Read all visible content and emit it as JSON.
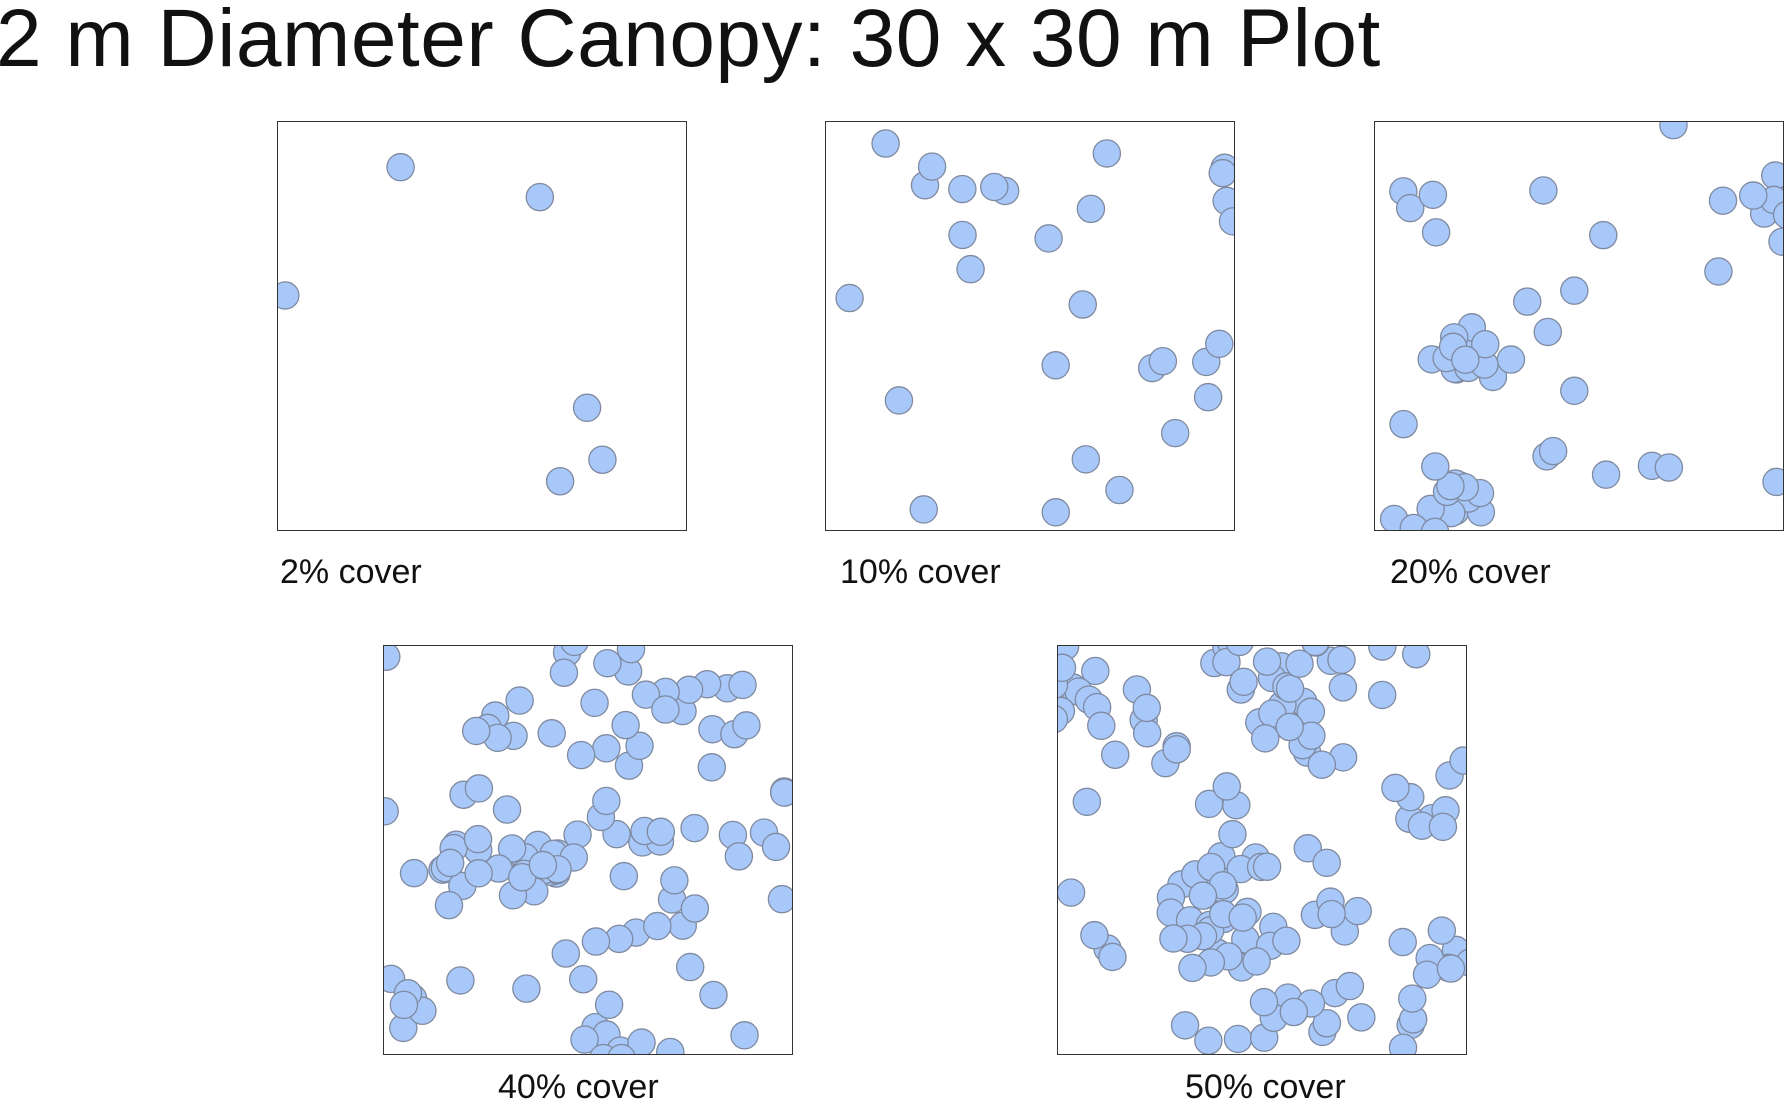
{
  "title": "2 m Diameter Canopy: 30 x 30 m Plot",
  "canopy_color": "#a8c8fa",
  "canopy_stroke": "#7f8aa0",
  "panels": [
    {
      "caption": "2% cover",
      "cover_percent": 2
    },
    {
      "caption": "10% cover",
      "cover_percent": 10
    },
    {
      "caption": "20% cover",
      "cover_percent": 20
    },
    {
      "caption": "40% cover",
      "cover_percent": 40
    },
    {
      "caption": "50% cover",
      "cover_percent": 50
    }
  ]
}
